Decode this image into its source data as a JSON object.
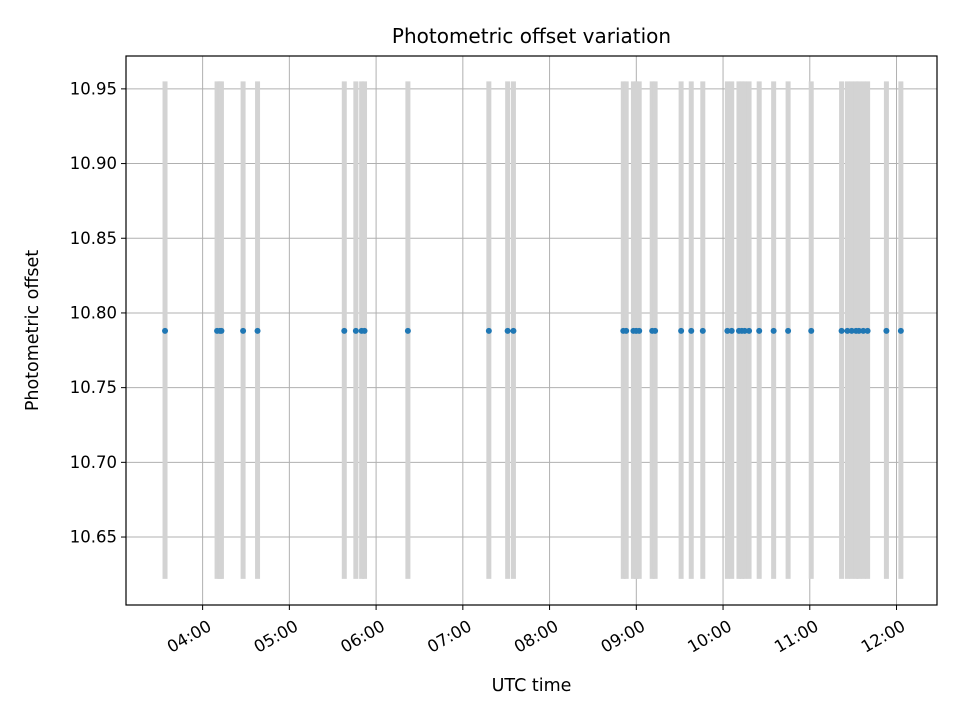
{
  "chart_data": {
    "type": "scatter",
    "title": "Photometric offset variation",
    "xlabel": "UTC time",
    "ylabel": "Photometric offset",
    "x_ticks": [
      "04:00",
      "05:00",
      "06:00",
      "07:00",
      "08:00",
      "09:00",
      "10:00",
      "11:00",
      "12:00"
    ],
    "y_ticks": [
      "10.65",
      "10.70",
      "10.75",
      "10.80",
      "10.85",
      "10.90",
      "10.95"
    ],
    "xlim": [
      "03:07",
      "12:28"
    ],
    "ylim": [
      10.6045,
      10.972
    ],
    "grid": true,
    "points_color": "#1f77b4",
    "bars_color": "#d3d3d3",
    "bar_range": [
      10.622,
      10.955
    ],
    "x": [
      "03:34",
      "04:10",
      "04:12",
      "04:13",
      "04:28",
      "04:38",
      "05:38",
      "05:46",
      "05:50",
      "05:52",
      "06:22",
      "07:18",
      "07:31",
      "07:35",
      "08:51",
      "08:53",
      "08:58",
      "09:00",
      "09:02",
      "09:11",
      "09:13",
      "09:31",
      "09:38",
      "09:46",
      "10:03",
      "10:06",
      "10:11",
      "10:13",
      "10:15",
      "10:18",
      "10:25",
      "10:35",
      "10:45",
      "11:01",
      "11:22",
      "11:26",
      "11:29",
      "11:32",
      "11:34",
      "11:37",
      "11:40",
      "11:53",
      "12:03"
    ],
    "y": [
      10.788,
      10.788,
      10.788,
      10.788,
      10.788,
      10.788,
      10.788,
      10.788,
      10.788,
      10.788,
      10.788,
      10.788,
      10.788,
      10.788,
      10.788,
      10.788,
      10.788,
      10.788,
      10.788,
      10.788,
      10.788,
      10.788,
      10.788,
      10.788,
      10.788,
      10.788,
      10.788,
      10.788,
      10.788,
      10.788,
      10.788,
      10.788,
      10.788,
      10.788,
      10.788,
      10.788,
      10.788,
      10.788,
      10.788,
      10.788,
      10.788,
      10.788,
      10.788
    ]
  }
}
